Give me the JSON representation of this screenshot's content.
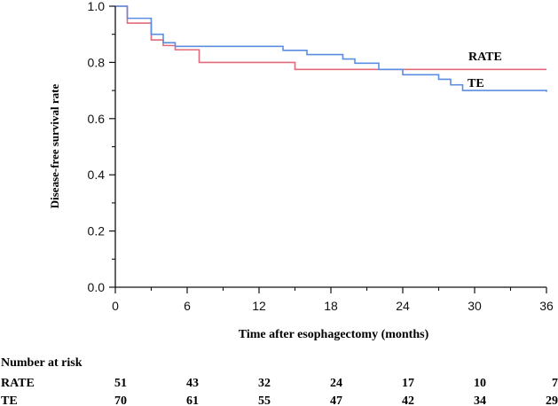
{
  "chart_data": {
    "type": "line",
    "subtype": "kaplan-meier-step",
    "xlabel": "Time  after esophagectomy (months)",
    "ylabel": "Disease-free survival rate",
    "xlim": [
      0,
      36
    ],
    "ylim": [
      0,
      1.0
    ],
    "x_ticks": [
      0,
      6,
      12,
      18,
      24,
      30,
      36
    ],
    "x_tick_labels": [
      "0",
      "6",
      "12",
      "18",
      "24",
      "30",
      "36"
    ],
    "y_ticks": [
      0,
      0.2,
      0.4,
      0.6,
      0.8,
      1.0
    ],
    "y_tick_labels": [
      "0.0",
      "0.2",
      "0.4",
      "0.6",
      "0.8",
      "1.0"
    ],
    "grid": false,
    "series": [
      {
        "name": "RATE",
        "color": "#e36a7a",
        "points": [
          [
            0,
            1.0
          ],
          [
            1,
            0.94
          ],
          [
            3,
            0.88
          ],
          [
            4,
            0.86
          ],
          [
            5,
            0.845
          ],
          [
            7,
            0.8
          ],
          [
            15,
            0.775
          ],
          [
            36,
            0.775
          ]
        ]
      },
      {
        "name": "TE",
        "color": "#5b8de2",
        "points": [
          [
            0,
            1.0
          ],
          [
            1,
            0.957
          ],
          [
            3,
            0.9
          ],
          [
            4,
            0.87
          ],
          [
            5,
            0.857
          ],
          [
            14,
            0.843
          ],
          [
            16,
            0.828
          ],
          [
            19,
            0.812
          ],
          [
            20,
            0.797
          ],
          [
            22,
            0.775
          ],
          [
            24,
            0.756
          ],
          [
            27,
            0.74
          ],
          [
            28,
            0.72
          ],
          [
            29,
            0.7
          ],
          [
            36,
            0.695
          ]
        ]
      }
    ],
    "annotations": [
      {
        "text": "RATE",
        "series": "RATE"
      },
      {
        "text": "TE",
        "series": "TE"
      }
    ],
    "risk_table": {
      "title": "Number at risk",
      "times": [
        0,
        6,
        12,
        18,
        24,
        30,
        36
      ],
      "rows": [
        {
          "label": "RATE",
          "values": [
            51,
            43,
            32,
            24,
            17,
            10,
            7
          ]
        },
        {
          "label": "TE",
          "values": [
            70,
            61,
            55,
            47,
            42,
            34,
            29
          ]
        }
      ]
    }
  }
}
